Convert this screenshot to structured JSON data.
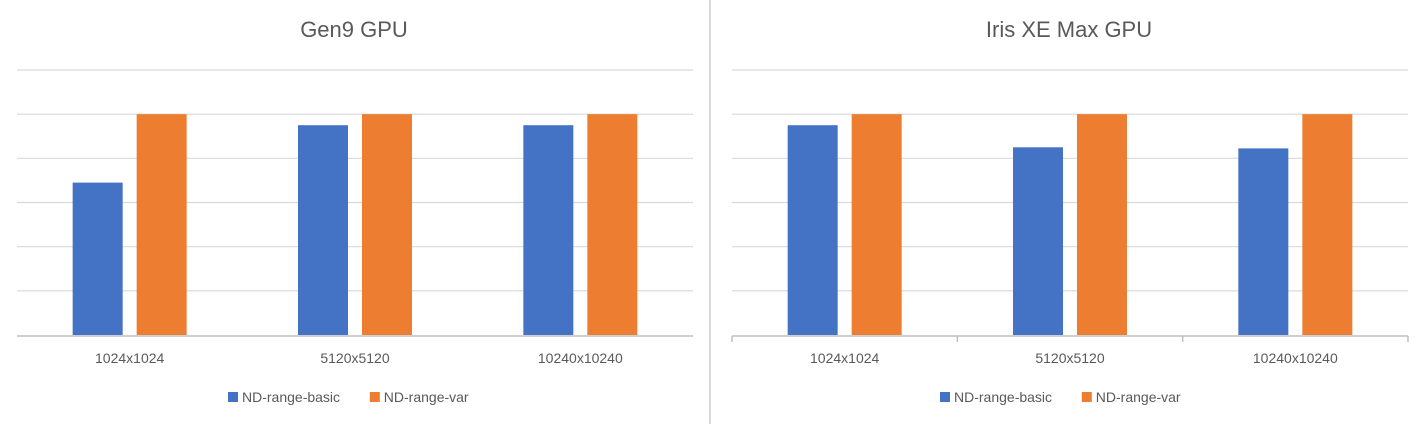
{
  "colors": {
    "series_basic": "#4472C4",
    "series_var": "#ED7D31",
    "grid": "#d9d9d9",
    "axis": "#bfbfbf",
    "text": "#595959"
  },
  "chart_data": [
    {
      "type": "bar",
      "title": "Gen9 GPU",
      "categories": [
        "1024x1024",
        "5120x5120",
        "10240x10240"
      ],
      "series": [
        {
          "name": "ND-range-basic",
          "values": [
            0.69,
            0.95,
            0.95
          ]
        },
        {
          "name": "ND-range-var",
          "values": [
            1.0,
            1.0,
            1.0
          ]
        }
      ],
      "ylim": [
        0,
        1.2
      ],
      "y_gridlines": [
        0.2,
        0.4,
        0.6,
        0.8,
        1.0,
        1.2
      ],
      "y_tick_labels_shown": false,
      "x_tick_marks": false,
      "grid": true,
      "legend": "bottom"
    },
    {
      "type": "bar",
      "title": "Iris XE Max GPU",
      "categories": [
        "1024x1024",
        "5120x5120",
        "10240x10240"
      ],
      "series": [
        {
          "name": "ND-range-basic",
          "values": [
            0.95,
            0.85,
            0.845
          ]
        },
        {
          "name": "ND-range-var",
          "values": [
            1.0,
            1.0,
            1.0
          ]
        }
      ],
      "ylim": [
        0,
        1.2
      ],
      "y_gridlines": [
        0.2,
        0.4,
        0.6,
        0.8,
        1.0,
        1.2
      ],
      "y_tick_labels_shown": false,
      "x_tick_marks": true,
      "grid": true,
      "legend": "bottom"
    }
  ]
}
